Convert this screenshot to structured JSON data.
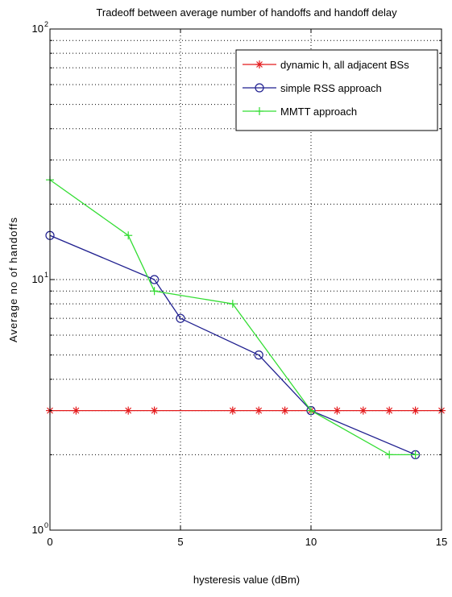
{
  "chart_data": {
    "type": "line",
    "title": "Tradeoff between average number of handoffs and handoff delay",
    "xlabel": "hysteresis value (dBm)",
    "ylabel": "Average no of handoffs",
    "xlim": [
      0,
      15
    ],
    "ylim": [
      1,
      100
    ],
    "yscale": "log",
    "grid": true,
    "legend_position": "top-right",
    "x_ticks": [
      0,
      5,
      10,
      15
    ],
    "y_ticks": [
      {
        "value": 1,
        "base": "10",
        "exp": "0"
      },
      {
        "value": 10,
        "base": "10",
        "exp": "1"
      },
      {
        "value": 100,
        "base": "10",
        "exp": "2"
      }
    ],
    "series": [
      {
        "name": "dynamic h, all adjacent BSs",
        "color": "#e41a1c",
        "marker": "star",
        "x": [
          0,
          1,
          3,
          4,
          7,
          8,
          9,
          10,
          11,
          12,
          13,
          14,
          15
        ],
        "y": [
          3,
          3,
          3,
          3,
          3,
          3,
          3,
          3,
          3,
          3,
          3,
          3,
          3
        ]
      },
      {
        "name": "simple RSS approach",
        "color": "#1f1f8f",
        "marker": "circle",
        "x": [
          0,
          4,
          5,
          8,
          10,
          14
        ],
        "y": [
          15,
          10,
          7,
          5,
          3,
          2
        ]
      },
      {
        "name": "MMTT approach",
        "color": "#33dd33",
        "marker": "plus",
        "x": [
          0,
          3,
          4,
          7,
          10,
          13,
          14
        ],
        "y": [
          25,
          15,
          9,
          8,
          3,
          2,
          2
        ]
      }
    ]
  }
}
